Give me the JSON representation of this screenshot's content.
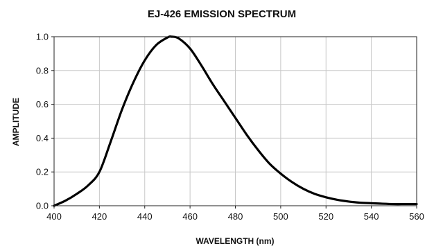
{
  "chart_data": {
    "type": "line",
    "title": "EJ-426 EMISSION SPECTRUM",
    "xlabel": "WAVELENGTH (nm)",
    "ylabel": "AMPLITUDE",
    "xlim": [
      400,
      560
    ],
    "ylim": [
      0,
      1.0
    ],
    "x_ticks": [
      "400",
      "420",
      "440",
      "460",
      "480",
      "500",
      "520",
      "540",
      "560"
    ],
    "y_ticks": [
      "0.0",
      "0.2",
      "0.4",
      "0.6",
      "0.8",
      "1.0"
    ],
    "grid": true,
    "line_color": "#000000",
    "series": [
      {
        "x": [
          400,
          405,
          410,
          415,
          420,
          425,
          430,
          435,
          440,
          445,
          450,
          452,
          455,
          460,
          465,
          470,
          475,
          480,
          485,
          490,
          495,
          500,
          505,
          510,
          515,
          520,
          525,
          530,
          535,
          540,
          545,
          550,
          555,
          560
        ],
        "y": [
          0.0,
          0.03,
          0.07,
          0.12,
          0.2,
          0.38,
          0.57,
          0.73,
          0.86,
          0.95,
          0.995,
          1.0,
          0.99,
          0.93,
          0.83,
          0.72,
          0.62,
          0.52,
          0.42,
          0.33,
          0.25,
          0.19,
          0.14,
          0.1,
          0.07,
          0.05,
          0.035,
          0.025,
          0.018,
          0.015,
          0.012,
          0.01,
          0.01,
          0.01
        ]
      }
    ]
  }
}
